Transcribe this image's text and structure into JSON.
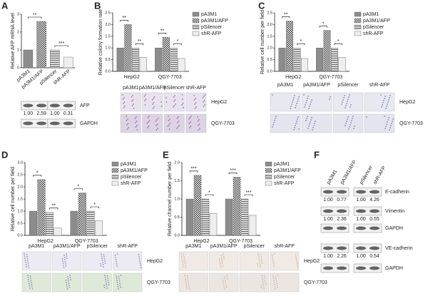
{
  "panel_labels": [
    "A",
    "B",
    "C",
    "D",
    "E",
    "F"
  ],
  "chart_data": [
    {
      "type": "bar",
      "ylabel": "Relative AFP mRNA level",
      "categories": [
        "pA3M1",
        "pA3M1/AFP",
        "pSilencer",
        "shR-AFP"
      ],
      "values": [
        1.0,
        2.6,
        1.0,
        0.6
      ],
      "colors": [
        "#8c8c8c",
        "#3a3a3a",
        "#d8d8d8",
        "#eeeeee"
      ],
      "patterns": [
        "solid",
        "checker",
        "stripe",
        "solid"
      ],
      "ylim": [
        0,
        3
      ],
      "yticks": [
        0,
        1,
        2,
        3
      ],
      "annotations": [
        "**",
        "***"
      ]
    },
    {
      "type": "bar",
      "ylabel": "Relative colony formation rate",
      "categories": [
        "HepG2",
        "QGY-7703"
      ],
      "series": [
        {
          "name": "pA3M1",
          "color": "#8c8c8c",
          "pattern": "solid",
          "values": [
            1.0,
            1.0
          ]
        },
        {
          "name": "pA3M1/AFP",
          "color": "#3a3a3a",
          "pattern": "checker",
          "values": [
            2.0,
            1.45
          ]
        },
        {
          "name": "pSilencer",
          "color": "#d8d8d8",
          "pattern": "stripe",
          "values": [
            1.0,
            1.0
          ]
        },
        {
          "name": "shR-AFP",
          "color": "#eeeeee",
          "pattern": "solid",
          "values": [
            0.6,
            0.55
          ]
        }
      ],
      "ylim": [
        0,
        2.5
      ],
      "yticks": [
        {
          "value": 0,
          "label": "0.0"
        },
        {
          "value": 0.5,
          "label": "0.5"
        },
        {
          "value": 1,
          "label": "1.0"
        },
        {
          "value": 1.5,
          "label": "1.5"
        },
        {
          "value": 2,
          "label": "2.0"
        },
        {
          "value": 2.5,
          "label": "2.5"
        }
      ],
      "annotations": [
        "**",
        "**",
        "**",
        "*"
      ]
    },
    {
      "type": "bar",
      "ylabel": "Relative cell number per field",
      "categories": [
        "HepG2",
        "QGY-7703"
      ],
      "series": [
        {
          "name": "pA3M1",
          "color": "#8c8c8c",
          "pattern": "solid",
          "values": [
            1.0,
            1.0
          ]
        },
        {
          "name": "pA3M1/AFP",
          "color": "#3a3a3a",
          "pattern": "checker",
          "values": [
            2.15,
            1.75
          ]
        },
        {
          "name": "pSilencer",
          "color": "#d8d8d8",
          "pattern": "stripe",
          "values": [
            1.0,
            1.0
          ]
        },
        {
          "name": "shR-AFP",
          "color": "#eeeeee",
          "pattern": "solid",
          "values": [
            0.55,
            0.6
          ]
        }
      ],
      "ylim": [
        0,
        2.5
      ],
      "yticks": [
        {
          "value": 0,
          "label": "0.0"
        },
        {
          "value": 0.5,
          "label": "0.5"
        },
        {
          "value": 1,
          "label": "1.0"
        },
        {
          "value": 1.5,
          "label": "1.5"
        },
        {
          "value": 2,
          "label": "2.0"
        },
        {
          "value": 2.5,
          "label": "2.5"
        }
      ],
      "annotations": [
        "**",
        "*",
        "*",
        "*"
      ]
    },
    {
      "type": "bar",
      "ylabel": "Relative cell number per field",
      "categories": [
        "HepG2",
        "QGY-7703"
      ],
      "series": [
        {
          "name": "pA3M1",
          "color": "#8c8c8c",
          "pattern": "solid",
          "values": [
            1.0,
            1.0
          ]
        },
        {
          "name": "pA3M1/AFP",
          "color": "#3a3a3a",
          "pattern": "checker",
          "values": [
            2.3,
            1.75
          ]
        },
        {
          "name": "pSilencer",
          "color": "#d8d8d8",
          "pattern": "stripe",
          "values": [
            0.95,
            1.0
          ]
        },
        {
          "name": "shR-AFP",
          "color": "#eeeeee",
          "pattern": "solid",
          "values": [
            0.3,
            0.6
          ]
        }
      ],
      "ylim": [
        0,
        3
      ],
      "yticks": [
        {
          "value": 0,
          "label": "0.0"
        },
        {
          "value": 0.5,
          "label": "0.5"
        },
        {
          "value": 1,
          "label": "1.0"
        },
        {
          "value": 1.5,
          "label": "1.5"
        },
        {
          "value": 2,
          "label": "2.0"
        },
        {
          "value": 2.5,
          "label": "2.5"
        },
        {
          "value": 3,
          "label": "3.0"
        }
      ],
      "annotations": [
        "*",
        "**",
        "*",
        "*"
      ]
    },
    {
      "type": "bar",
      "ylabel": "Relative channel number per field",
      "categories": [
        "HepG2",
        "QGY-7703"
      ],
      "series": [
        {
          "name": "pA3M1",
          "color": "#8c8c8c",
          "pattern": "solid",
          "values": [
            1.0,
            1.0
          ]
        },
        {
          "name": "pA3M1/AFP",
          "color": "#3a3a3a",
          "pattern": "checker",
          "values": [
            1.65,
            1.6
          ]
        },
        {
          "name": "pSilencer",
          "color": "#d8d8d8",
          "pattern": "stripe",
          "values": [
            1.0,
            1.0
          ]
        },
        {
          "name": "shR-AFP",
          "color": "#eeeeee",
          "pattern": "solid",
          "values": [
            0.6,
            0.55
          ]
        }
      ],
      "ylim": [
        0,
        2
      ],
      "yticks": [
        {
          "value": 0,
          "label": "0.0"
        },
        {
          "value": 0.5,
          "label": "0.5"
        },
        {
          "value": 1,
          "label": "1.0"
        },
        {
          "value": 1.5,
          "label": "1.5"
        },
        {
          "value": 2,
          "label": "2.0"
        }
      ],
      "annotations": [
        "***",
        "*",
        "***",
        "***"
      ]
    }
  ],
  "images": [
    {
      "columns": [
        "pA3M1",
        "pA3M1/AFP",
        "pSilencer",
        "shR-AFP"
      ],
      "rows": [
        "HepG2",
        "QGY-7703"
      ]
    },
    {
      "columns": [
        "pA3M1",
        "pA3M1/AFP",
        "pSilencer",
        "shR-AFP"
      ],
      "rows": [
        "HepG2",
        "QGY-7703"
      ]
    },
    {
      "columns": [
        "pA3M1",
        "pA3M1/AFP",
        "pSilencer",
        "shR-AFP"
      ],
      "rows": [
        "HepG2",
        "QGY-7703"
      ]
    },
    {
      "columns": [
        "pA3M1",
        "pA3M1/AFP",
        "pSilencer",
        "shR-AFP"
      ],
      "rows": [
        "HepG2",
        "QGY-7703"
      ]
    }
  ],
  "blot_a": {
    "rows": [
      {
        "label": "AFP",
        "values": [
          "1.00",
          "2.59",
          "1.00",
          "0.31"
        ]
      },
      {
        "label": "GAPDH"
      }
    ]
  },
  "blot_f": {
    "columns": [
      "pA3M1",
      "pA3M1/AFP",
      "pSilencer",
      "shR-AFP"
    ],
    "rows": [
      {
        "label": "E-cadherin",
        "values": [
          "1.00",
          "0.77",
          "1.00",
          "4.26"
        ]
      },
      {
        "label": "Vimentin",
        "values": [
          "1.00",
          "2.36",
          "1.00",
          "0.55"
        ]
      },
      {
        "label": "GAPDH"
      },
      {
        "label": "VE-cadherin",
        "values": [
          "1.00",
          "2.26",
          "1.00",
          "0.54"
        ]
      },
      {
        "label": "GAPDH"
      }
    ]
  }
}
